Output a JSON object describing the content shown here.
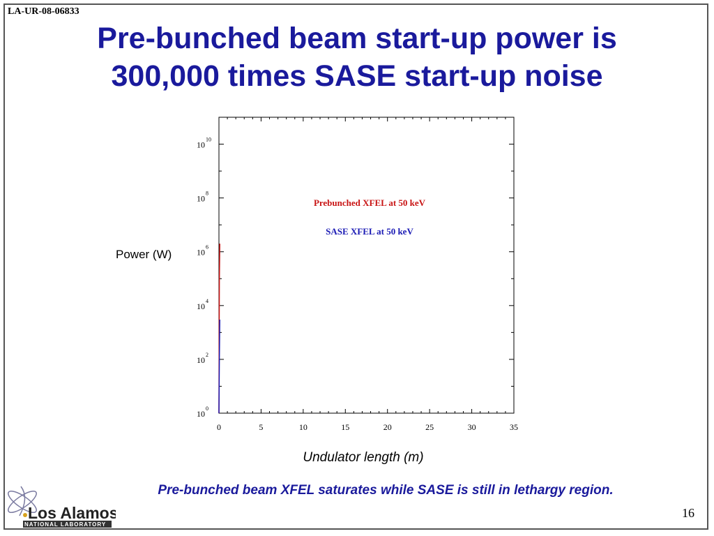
{
  "slide": {
    "doc_id": "LA-UR-08-06833",
    "title_line1": "Pre-bunched beam start-up power is",
    "title_line2": "300,000 times SASE start-up noise",
    "caption": "Pre-bunched beam XFEL saturates while SASE is still in lethargy region.",
    "page_number": "16",
    "title_color": "#1a1a9c"
  },
  "logo": {
    "name": "Los Alamos",
    "sub": "NATIONAL LABORATORY"
  },
  "chart_data": {
    "type": "line",
    "title": "",
    "xlabel": "Undulator length (m)",
    "ylabel": "Power (W)",
    "xlim": [
      0,
      35
    ],
    "ylim": [
      1,
      100000000000.0
    ],
    "yscale": "log",
    "x_ticks": [
      0,
      5,
      10,
      15,
      20,
      25,
      30,
      35
    ],
    "y_ticks": [
      {
        "base": "10",
        "exp": "0"
      },
      {
        "base": "10",
        "exp": "2"
      },
      {
        "base": "10",
        "exp": "4"
      },
      {
        "base": "10",
        "exp": "6"
      },
      {
        "base": "10",
        "exp": "8"
      },
      {
        "base": "10",
        "exp": "10"
      }
    ],
    "grid": false,
    "series": [
      {
        "name": "Prebunched XFEL at 50 keV",
        "color": "#c81414",
        "x": [
          0,
          0.05,
          0.1
        ],
        "y": [
          1,
          80000,
          2000000
        ]
      },
      {
        "name": "SASE XFEL at 50 keV",
        "color": "#1a1ab4",
        "x": [
          0,
          0.05,
          0.1
        ],
        "y": [
          1,
          100,
          3000
        ]
      }
    ]
  }
}
